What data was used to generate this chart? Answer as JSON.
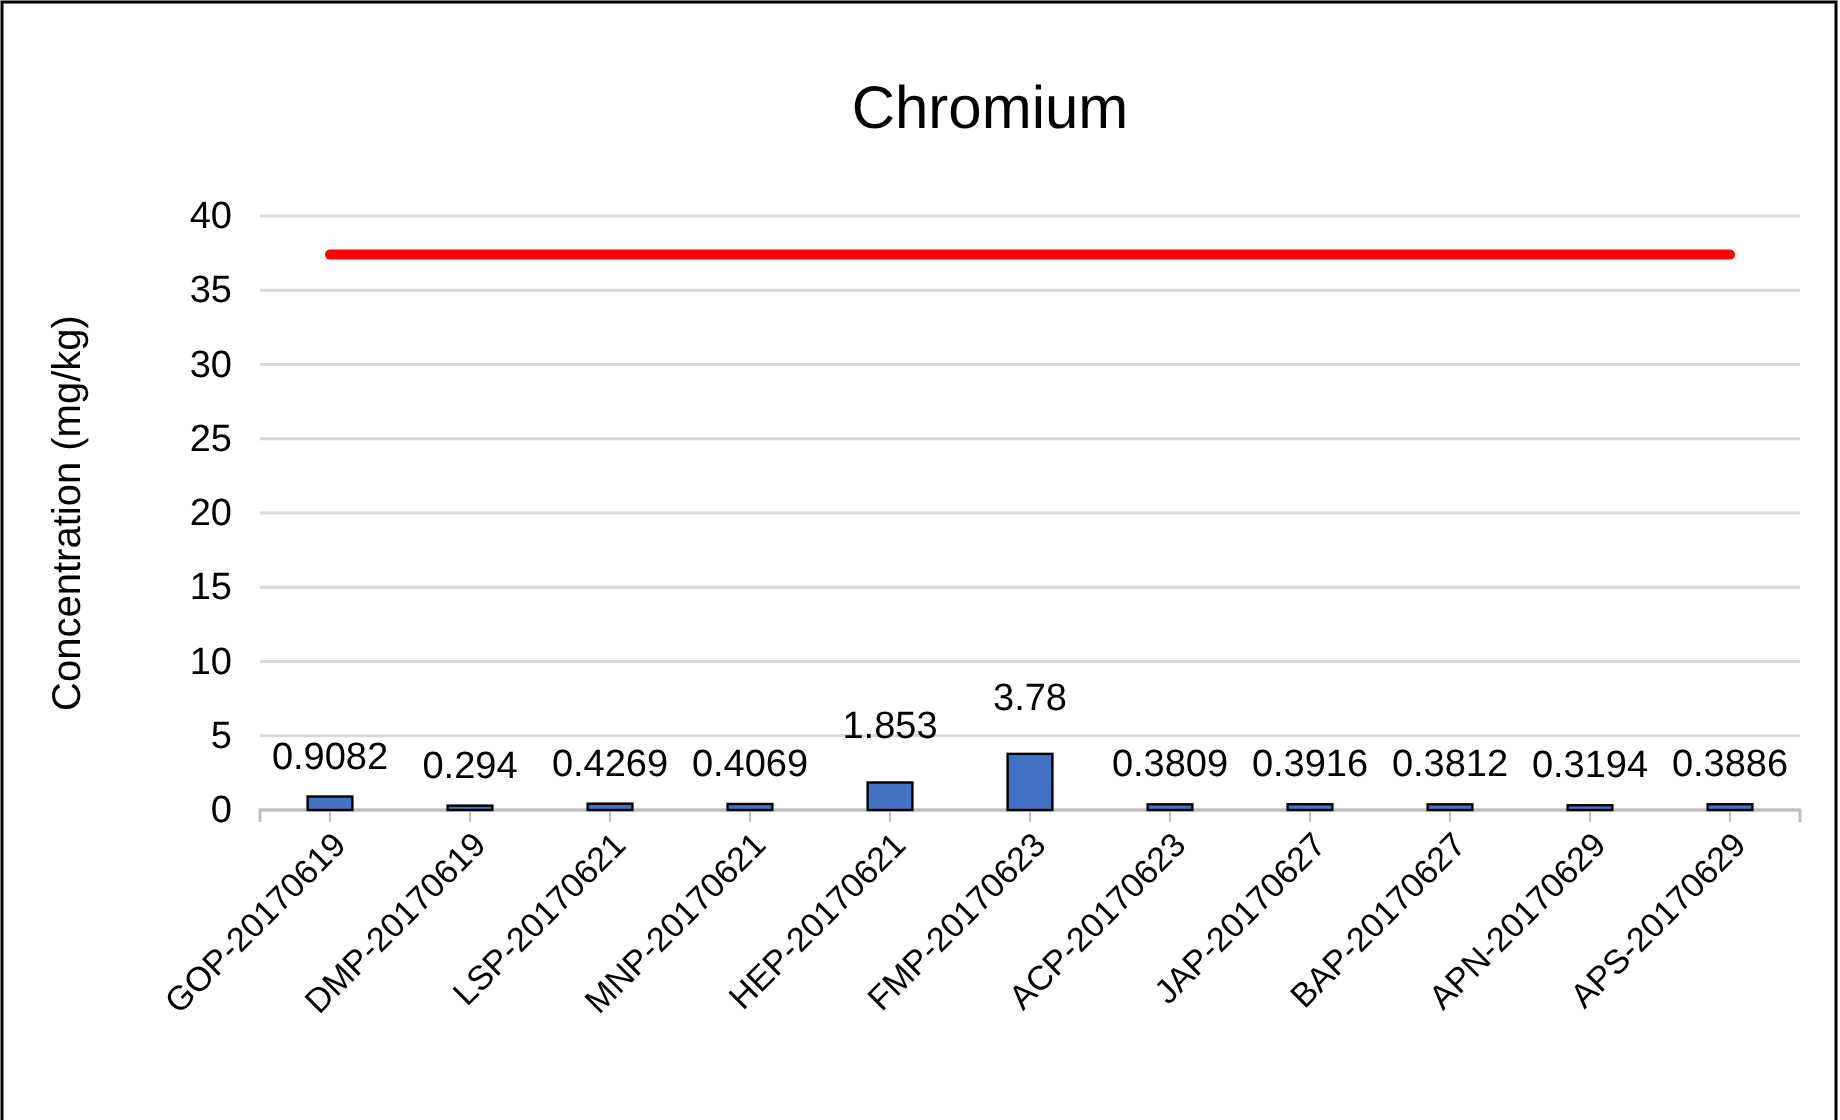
{
  "chart_data": {
    "type": "bar",
    "title": "Chromium",
    "ylabel": "Concentration (mg/kg)",
    "categories": [
      "GOP-20170619",
      "DMP-20170619",
      "LSP-20170621",
      "MNP-20170621",
      "HEP-20170621",
      "FMP-20170623",
      "ACP-20170623",
      "JAP-20170627",
      "BAP-20170627",
      "APN-20170629",
      "APS-20170629"
    ],
    "series": [
      {
        "color": "#4472c4",
        "values": [
          0.9082,
          0.294,
          0.4269,
          0.4069,
          1.853,
          3.78,
          0.3809,
          0.3916,
          0.3812,
          0.3194,
          0.3886
        ],
        "value_labels": [
          "0.9082",
          "0.294",
          "0.4269",
          "0.4069",
          "1.853",
          "3.78",
          "0.3809",
          "0.3916",
          "0.3812",
          "0.3194",
          "0.3886"
        ]
      },
      {
        "type": "line",
        "color": "#ff0000",
        "values": [
          37.4,
          37.4,
          37.4,
          37.4,
          37.4,
          37.4,
          37.4,
          37.4,
          37.4,
          37.4,
          37.4
        ]
      }
    ],
    "ylim": [
      0,
      40
    ],
    "yticks": [
      0,
      5,
      10,
      15,
      20,
      25,
      30,
      35,
      40
    ],
    "grid": "y"
  }
}
